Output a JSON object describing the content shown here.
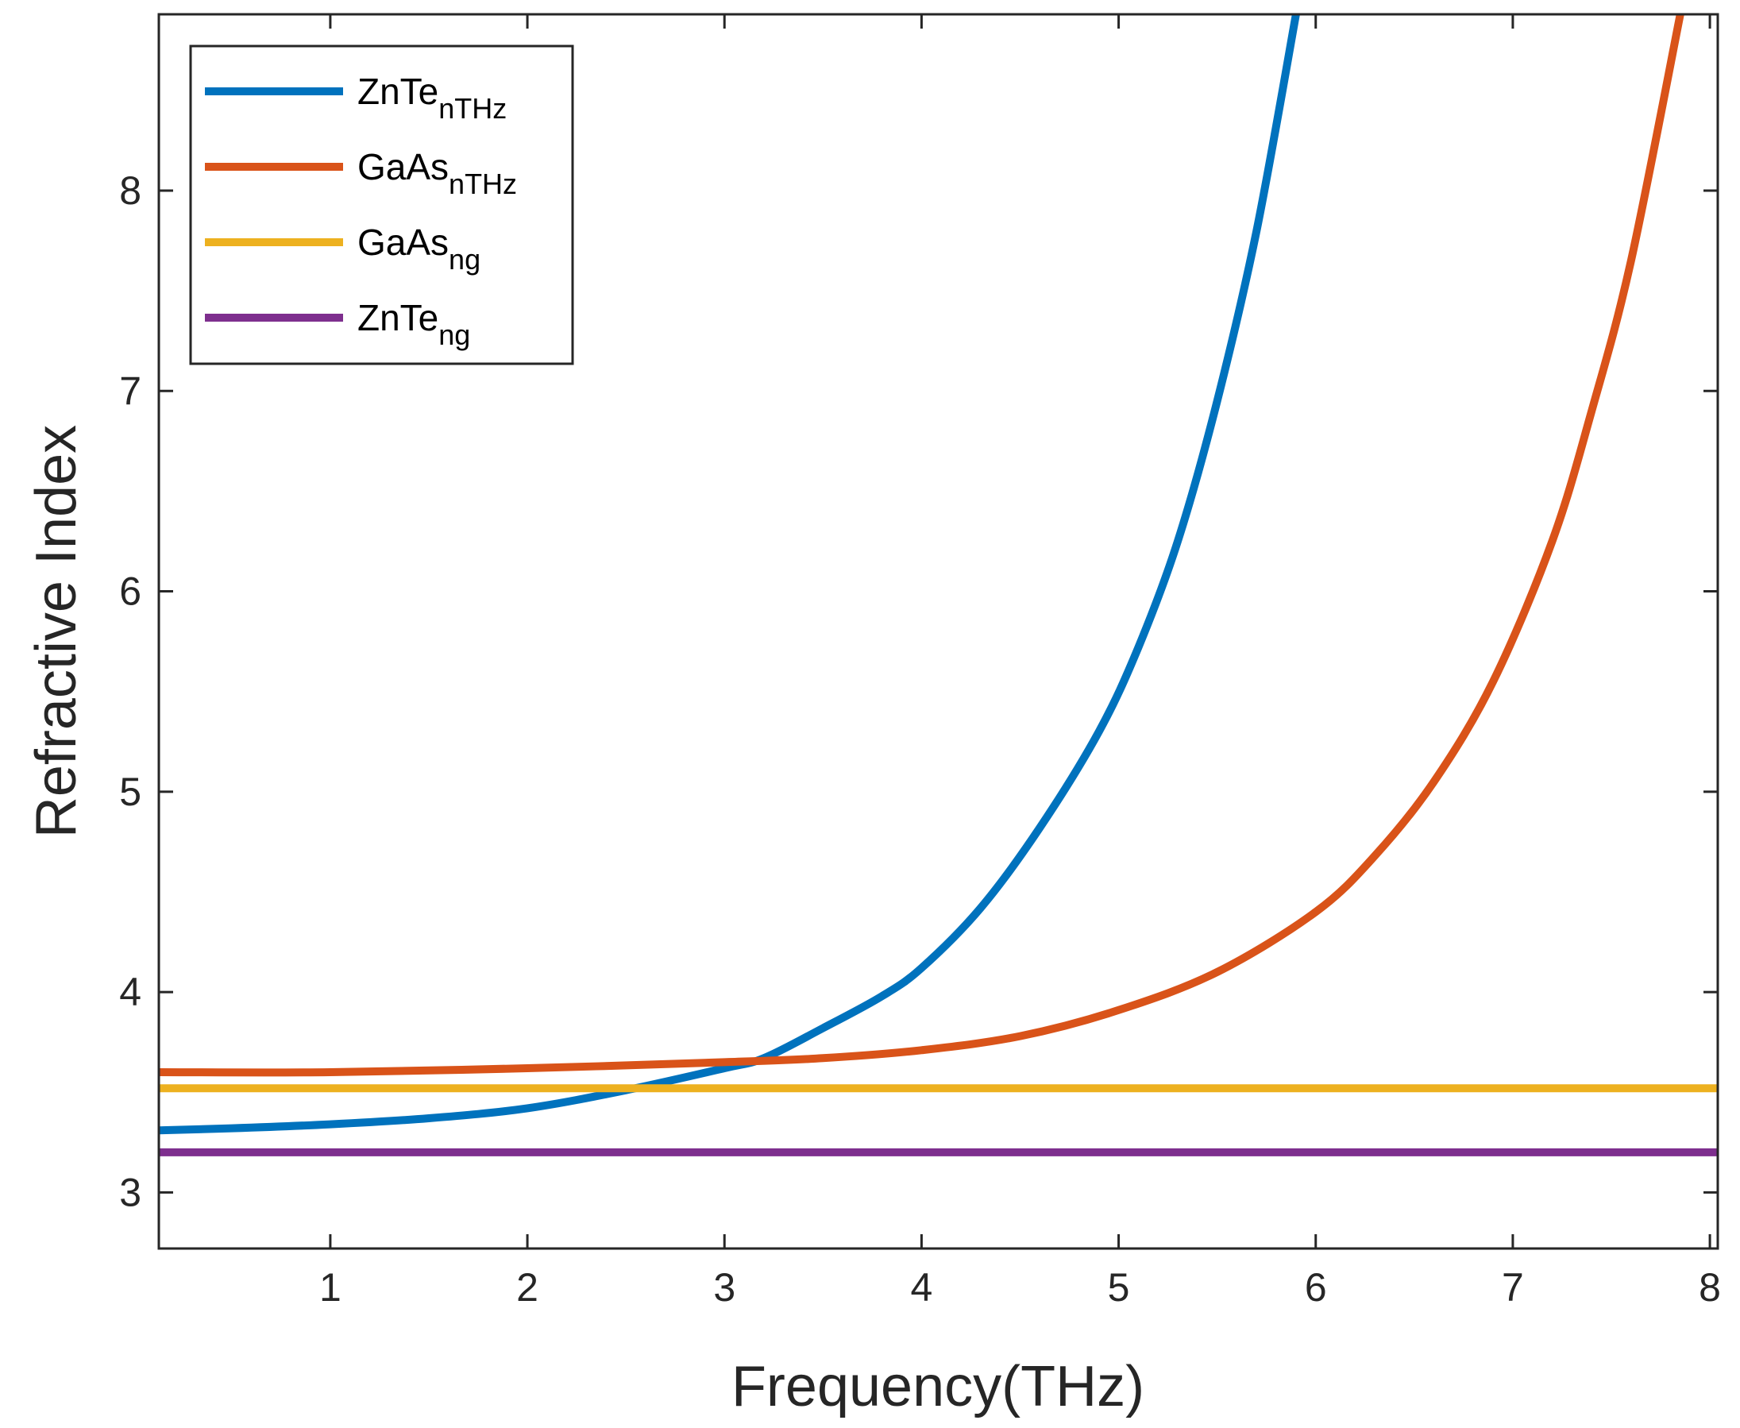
{
  "chart_data": {
    "type": "line",
    "title": "",
    "xlabel": "Frequency(THz)",
    "ylabel": "Refractive Index",
    "xlim": [
      0.13,
      8.04
    ],
    "ylim": [
      2.72,
      8.88
    ],
    "xticks": [
      1,
      2,
      3,
      4,
      5,
      6,
      7,
      8
    ],
    "yticks": [
      3,
      4,
      5,
      6,
      7,
      8
    ],
    "grid": false,
    "legend_position": "top-left",
    "series": [
      {
        "name": "ZnTe_nTHz",
        "label_main": "ZnTe",
        "label_sub": "nTHz",
        "color": "#0072BD",
        "x": [
          0.13,
          0.5,
          1.0,
          1.5,
          2.0,
          2.5,
          3.0,
          3.2,
          3.5,
          3.8,
          4.0,
          4.3,
          4.6,
          4.9,
          5.1,
          5.3,
          5.5,
          5.7,
          5.9
        ],
        "y": [
          3.31,
          3.32,
          3.34,
          3.37,
          3.42,
          3.51,
          3.62,
          3.67,
          3.82,
          3.98,
          4.12,
          4.42,
          4.82,
          5.3,
          5.72,
          6.25,
          6.95,
          7.8,
          8.88
        ]
      },
      {
        "name": "GaAs_nTHz",
        "label_main": "GaAs",
        "label_sub": "nTHz",
        "color": "#D95319",
        "x": [
          0.13,
          1.0,
          2.0,
          3.0,
          3.5,
          4.0,
          4.5,
          5.0,
          5.5,
          6.0,
          6.3,
          6.6,
          6.9,
          7.2,
          7.4,
          7.6,
          7.85
        ],
        "y": [
          3.6,
          3.6,
          3.62,
          3.65,
          3.67,
          3.71,
          3.78,
          3.91,
          4.1,
          4.4,
          4.68,
          5.05,
          5.55,
          6.25,
          6.9,
          7.65,
          8.88
        ]
      },
      {
        "name": "GaAs_ng",
        "label_main": "GaAs",
        "label_sub": "ng",
        "color": "#EDB120",
        "x": [
          0.13,
          8.04
        ],
        "y": [
          3.52,
          3.52
        ]
      },
      {
        "name": "ZnTe_ng",
        "label_main": "ZnTe",
        "label_sub": "ng",
        "color": "#7E2F8E",
        "x": [
          0.13,
          8.04
        ],
        "y": [
          3.2,
          3.2
        ]
      }
    ]
  }
}
